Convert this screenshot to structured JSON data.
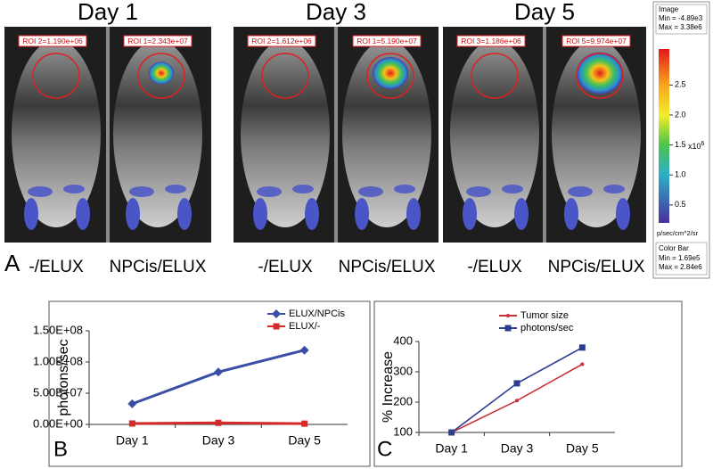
{
  "panel_a": {
    "letter": "A",
    "groups": [
      {
        "day": "Day 1",
        "rois": [
          "ROI 2=1.190e+06",
          "ROI 1=2.343e+07"
        ],
        "labels": [
          "-/ELUX",
          "NPCis/ELUX"
        ]
      },
      {
        "day": "Day 3",
        "rois": [
          "ROI 2=1.612e+06",
          "ROI 1=5.190e+07"
        ],
        "labels": [
          "-/ELUX",
          "NPCis/ELUX"
        ]
      },
      {
        "day": "Day 5",
        "rois": [
          "ROI 3=1.186e+06",
          "ROI 5=9.974e+07"
        ],
        "labels": [
          "-/ELUX",
          "NPCis/ELUX"
        ]
      }
    ],
    "colorbar": {
      "image_title": "Image",
      "image_min": "Min = -4.89e3",
      "image_max": "Max = 3.38e6",
      "lim": [
        0.2,
        3.1
      ],
      "ticks": [
        0.5,
        {
          "value": 1,
          "label": "1.0"
        },
        1.5,
        {
          "value": 2,
          "label": "2.0"
        },
        2.5
      ],
      "multiplier": "x10",
      "exponent": "6",
      "unit": "p/sec/cm^2/sr",
      "bar_title": "Color Bar",
      "bar_min": "Min = 1.69e5",
      "bar_max": "Max = 2.84e6"
    }
  },
  "chart_data": [
    {
      "type": "line",
      "panel": "B",
      "ylabel": "photons/sec",
      "categories": [
        "Day 1",
        "Day 3",
        "Day 5"
      ],
      "series": [
        {
          "name": "ELUX/NPCis",
          "color": "#3b4ea6",
          "marker": "diamond",
          "values": [
            33000000,
            84000000,
            119000000
          ]
        },
        {
          "name": "ELUX/-",
          "color": "#d42a2a",
          "marker": "square",
          "values": [
            1500000,
            2500000,
            1200000
          ]
        }
      ],
      "ylim": [
        0,
        150000000
      ],
      "yticks": [
        {
          "value": 0,
          "label": "0.00E+00"
        },
        {
          "value": 50000000,
          "label": "5.00E+07"
        },
        {
          "value": 100000000,
          "label": "1.00E+08"
        },
        {
          "value": 150000000,
          "label": "1.50E+08"
        }
      ],
      "legend": "upper right"
    },
    {
      "type": "line",
      "panel": "C",
      "ylabel": "% Increase",
      "categories": [
        "Day 1",
        "Day 3",
        "Day 5"
      ],
      "series": [
        {
          "name": "Tumor size",
          "color": "#c8313a",
          "marker": "dot",
          "values": [
            100,
            205,
            325
          ]
        },
        {
          "name": "photons/sec",
          "color": "#2c3d8f",
          "marker": "square",
          "values": [
            100,
            262,
            380
          ]
        }
      ],
      "ylim": [
        100,
        400
      ],
      "yticks": [
        100,
        200,
        300,
        400
      ],
      "legend": "upper right"
    }
  ]
}
